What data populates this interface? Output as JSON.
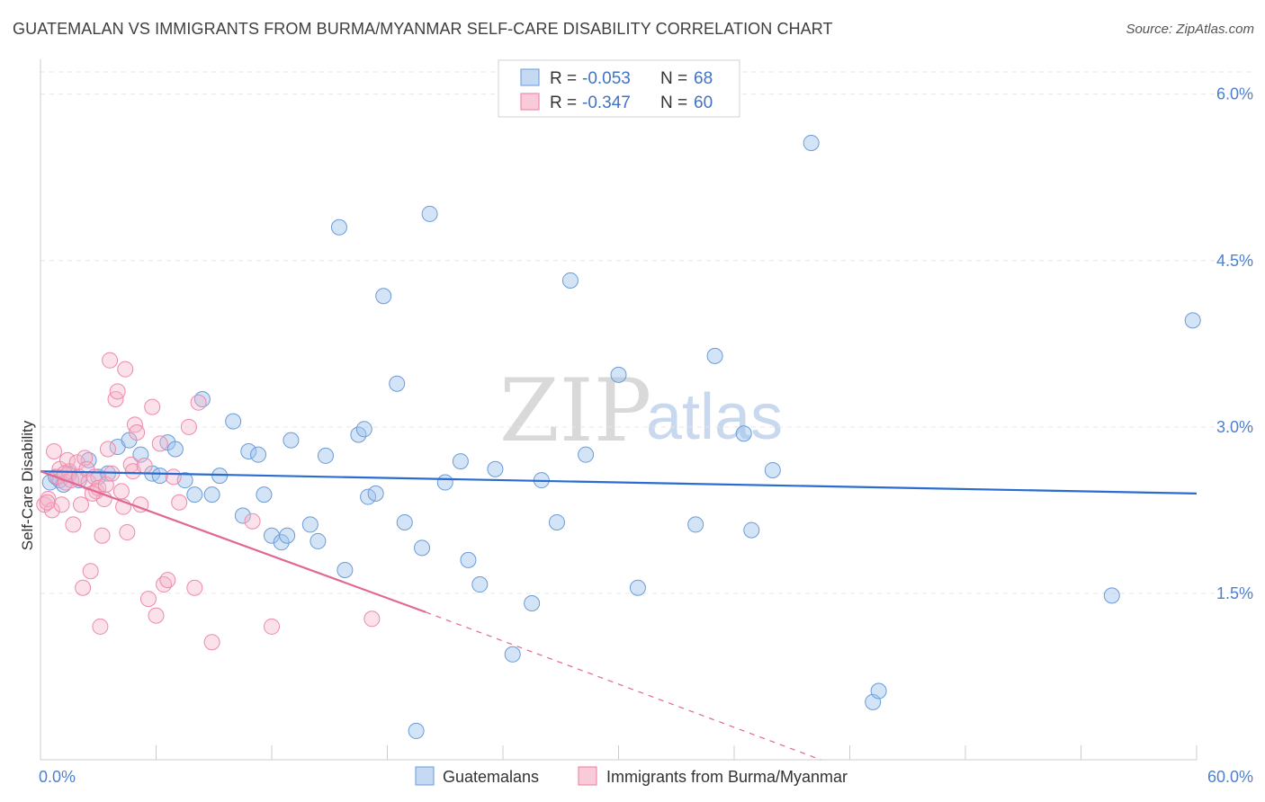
{
  "header": {
    "title": "GUATEMALAN VS IMMIGRANTS FROM BURMA/MYANMAR SELF-CARE DISABILITY CORRELATION CHART",
    "source": "Source: ZipAtlas.com"
  },
  "watermark": {
    "zip": "ZIP",
    "atlas": "atlas"
  },
  "legend": {
    "r_label": "R =",
    "n_label": "N =",
    "entries": [
      {
        "r": "-0.053",
        "n": "68",
        "color": "#7aa7e0"
      },
      {
        "r": "-0.347",
        "n": "60",
        "color": "#f08aa8"
      }
    ]
  },
  "colors": {
    "blue": "#6b9bd8",
    "blue_line": "#2a6ccf",
    "pink": "#ee8aaa",
    "pink_line": "#e06892",
    "tick_text": "#4f7fd0"
  },
  "chart_data": {
    "type": "scatter",
    "xlabel": "",
    "ylabel": "Self-Care Disability",
    "xlim": [
      0,
      60
    ],
    "ylim": [
      0,
      6.2
    ],
    "x_tick_labels": [
      "0.0%",
      "60.0%"
    ],
    "y_ticks": [
      1.5,
      3.0,
      4.5,
      6.0
    ],
    "y_tick_labels": [
      "1.5%",
      "3.0%",
      "4.5%",
      "6.0%"
    ],
    "grid": true,
    "legend_position": "top-center",
    "series": [
      {
        "name": "Guatemalans",
        "color": "#6b9bd8",
        "trend": {
          "x": [
            0,
            60
          ],
          "y": [
            2.6,
            2.4
          ]
        },
        "points": [
          [
            0.5,
            2.5
          ],
          [
            0.8,
            2.55
          ],
          [
            1.0,
            2.52
          ],
          [
            1.2,
            2.48
          ],
          [
            1.5,
            2.58
          ],
          [
            2.0,
            2.52
          ],
          [
            2.5,
            2.7
          ],
          [
            3.0,
            2.55
          ],
          [
            3.5,
            2.58
          ],
          [
            4.0,
            2.82
          ],
          [
            4.6,
            2.88
          ],
          [
            5.2,
            2.75
          ],
          [
            5.8,
            2.58
          ],
          [
            6.2,
            2.56
          ],
          [
            6.6,
            2.86
          ],
          [
            7.0,
            2.8
          ],
          [
            7.5,
            2.52
          ],
          [
            8.0,
            2.39
          ],
          [
            8.4,
            3.25
          ],
          [
            8.9,
            2.39
          ],
          [
            9.3,
            2.56
          ],
          [
            10.0,
            3.05
          ],
          [
            10.5,
            2.2
          ],
          [
            10.8,
            2.78
          ],
          [
            11.3,
            2.75
          ],
          [
            11.6,
            2.39
          ],
          [
            12.0,
            2.02
          ],
          [
            12.5,
            1.96
          ],
          [
            12.8,
            2.02
          ],
          [
            13.0,
            2.88
          ],
          [
            14.0,
            2.12
          ],
          [
            14.4,
            1.97
          ],
          [
            14.8,
            2.74
          ],
          [
            15.5,
            4.8
          ],
          [
            15.8,
            1.71
          ],
          [
            16.5,
            2.93
          ],
          [
            16.8,
            2.98
          ],
          [
            17.0,
            2.37
          ],
          [
            17.4,
            2.4
          ],
          [
            17.8,
            4.18
          ],
          [
            18.5,
            3.39
          ],
          [
            18.9,
            2.14
          ],
          [
            19.5,
            0.26
          ],
          [
            19.8,
            1.91
          ],
          [
            20.2,
            4.92
          ],
          [
            21.0,
            2.5
          ],
          [
            21.8,
            2.69
          ],
          [
            22.2,
            1.8
          ],
          [
            22.8,
            1.58
          ],
          [
            23.6,
            2.62
          ],
          [
            24.5,
            0.95
          ],
          [
            25.5,
            1.41
          ],
          [
            26.0,
            2.52
          ],
          [
            26.8,
            2.14
          ],
          [
            27.5,
            4.32
          ],
          [
            28.3,
            2.75
          ],
          [
            30.0,
            3.47
          ],
          [
            31.0,
            1.55
          ],
          [
            34.0,
            2.12
          ],
          [
            35.0,
            3.64
          ],
          [
            36.5,
            2.94
          ],
          [
            36.9,
            2.07
          ],
          [
            38.0,
            2.61
          ],
          [
            40.0,
            5.56
          ],
          [
            43.2,
            0.52
          ],
          [
            43.5,
            0.62
          ],
          [
            55.6,
            1.48
          ],
          [
            59.8,
            3.96
          ]
        ]
      },
      {
        "name": "Immigrants from Burma/Myanmar",
        "color": "#ee8aaa",
        "trend": {
          "x": [
            0,
            20
          ],
          "y": [
            2.6,
            1.33
          ]
        },
        "trend_dashed": {
          "x": [
            20,
            40.5
          ],
          "y": [
            1.33,
            0.0
          ]
        },
        "points": [
          [
            0.2,
            2.3
          ],
          [
            0.4,
            2.35
          ],
          [
            0.6,
            2.25
          ],
          [
            0.7,
            2.78
          ],
          [
            0.9,
            2.55
          ],
          [
            1.0,
            2.62
          ],
          [
            1.1,
            2.3
          ],
          [
            1.3,
            2.5
          ],
          [
            1.4,
            2.7
          ],
          [
            1.5,
            2.6
          ],
          [
            1.6,
            2.52
          ],
          [
            1.7,
            2.12
          ],
          [
            1.9,
            2.68
          ],
          [
            2.0,
            2.55
          ],
          [
            2.1,
            2.3
          ],
          [
            2.2,
            1.55
          ],
          [
            2.3,
            2.72
          ],
          [
            2.4,
            2.62
          ],
          [
            2.5,
            2.5
          ],
          [
            2.6,
            1.7
          ],
          [
            2.8,
            2.55
          ],
          [
            2.9,
            2.42
          ],
          [
            3.0,
            2.45
          ],
          [
            3.1,
            1.2
          ],
          [
            3.2,
            2.02
          ],
          [
            3.3,
            2.35
          ],
          [
            3.4,
            2.48
          ],
          [
            3.5,
            2.8
          ],
          [
            3.6,
            3.6
          ],
          [
            3.7,
            2.58
          ],
          [
            3.9,
            3.25
          ],
          [
            4.0,
            3.32
          ],
          [
            4.2,
            2.42
          ],
          [
            4.3,
            2.28
          ],
          [
            4.4,
            3.52
          ],
          [
            4.5,
            2.05
          ],
          [
            4.7,
            2.66
          ],
          [
            4.8,
            2.6
          ],
          [
            4.9,
            3.02
          ],
          [
            5.0,
            2.95
          ],
          [
            5.2,
            2.3
          ],
          [
            5.4,
            2.65
          ],
          [
            5.6,
            1.45
          ],
          [
            5.8,
            3.18
          ],
          [
            6.0,
            1.3
          ],
          [
            6.2,
            2.85
          ],
          [
            6.4,
            1.58
          ],
          [
            6.6,
            1.62
          ],
          [
            6.9,
            2.55
          ],
          [
            7.2,
            2.32
          ],
          [
            7.7,
            3.0
          ],
          [
            8.0,
            1.55
          ],
          [
            8.2,
            3.22
          ],
          [
            8.9,
            1.06
          ],
          [
            11.0,
            2.15
          ],
          [
            12.0,
            1.2
          ],
          [
            17.2,
            1.27
          ],
          [
            0.35,
            2.32
          ],
          [
            1.25,
            2.58
          ],
          [
            2.7,
            2.4
          ]
        ]
      }
    ]
  },
  "bottom_legend": {
    "items": [
      {
        "label": "Guatemalans",
        "color": "#6b9bd8"
      },
      {
        "label": "Immigrants from Burma/Myanmar",
        "color": "#ee8aaa"
      }
    ]
  }
}
